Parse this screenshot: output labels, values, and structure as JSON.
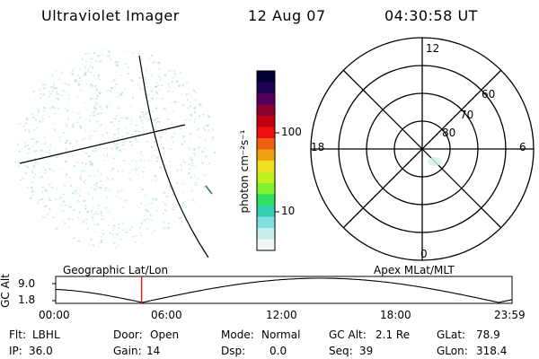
{
  "header": {
    "title": "Ultraviolet Imager",
    "date": "12 Aug 07",
    "time": "04:30:58 UT"
  },
  "geo_panel": {
    "label": "Geographic Lat/Lon"
  },
  "colorbar": {
    "unit_label": "photon cm⁻²s⁻¹",
    "ticks": [
      "100",
      "10"
    ],
    "colors": [
      "#000033",
      "#200050",
      "#520060",
      "#8a0030",
      "#c00010",
      "#f01010",
      "#f06010",
      "#f0a010",
      "#f0e020",
      "#c0f020",
      "#80f030",
      "#30e060",
      "#30d0b0",
      "#80e0e0",
      "#c8ecec",
      "#eef6f6"
    ]
  },
  "polar_panel": {
    "label": "Apex MLat/MLT",
    "mlt_labels": {
      "top": "12",
      "left": "18",
      "right": "6",
      "bottom": "0"
    },
    "lat_labels": [
      "60",
      "70",
      "80"
    ]
  },
  "altitude_plot": {
    "ylabel": "GC Alt",
    "y_ticks": [
      "9.0",
      "1.8"
    ],
    "x_ticks": [
      "00:00",
      "06:00",
      "12:00",
      "18:00",
      "23:59"
    ],
    "current_time_marker_hours": 4.52,
    "marker_color": "#ff0000"
  },
  "status": {
    "row1": [
      {
        "label": "Flt:",
        "value": "LBHL"
      },
      {
        "label": "Door:",
        "value": "Open"
      },
      {
        "label": "Mode:",
        "value": "Normal"
      },
      {
        "label": "GC Alt:",
        "value": "2.1 Re"
      },
      {
        "label": "GLat:",
        "value": "78.9"
      }
    ],
    "row2": [
      {
        "label": "IP:",
        "value": "36.0"
      },
      {
        "label": "Gain:",
        "value": "14"
      },
      {
        "label": "Dsp:",
        "value": "0.0"
      },
      {
        "label": "Seq:",
        "value": "39"
      },
      {
        "label": "GLon:",
        "value": "318.4"
      }
    ]
  }
}
